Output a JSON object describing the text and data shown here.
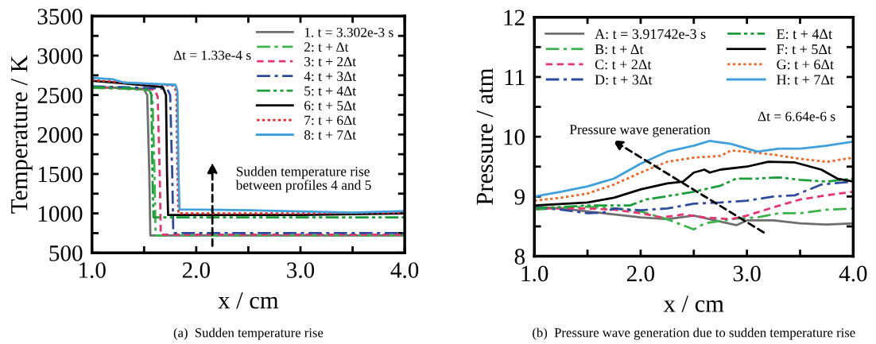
{
  "chart_data": [
    {
      "type": "line",
      "xlabel": "x / cm",
      "ylabel": "Temperature / K",
      "xlim": [
        1.0,
        4.0
      ],
      "ylim": [
        500,
        3500
      ],
      "xticks": [
        {
          "value": 1.0,
          "label": "1.0"
        },
        {
          "value": 1.5,
          "label": null
        },
        {
          "value": 2.0,
          "label": "2.0"
        },
        {
          "value": 2.5,
          "label": null
        },
        {
          "value": 3.0,
          "label": "3.0"
        },
        {
          "value": 3.5,
          "label": null
        },
        {
          "value": 4.0,
          "label": "4.0"
        }
      ],
      "yticks": [
        500,
        {
          "value": 750,
          "label": null
        },
        1000,
        {
          "value": 1250,
          "label": null
        },
        1500,
        {
          "value": 1750,
          "label": null
        },
        2000,
        {
          "value": 2250,
          "label": null
        },
        2500,
        {
          "value": 2750,
          "label": null
        },
        3000,
        {
          "value": 3250,
          "label": null
        },
        3500
      ],
      "grid": false,
      "legend": "top right",
      "annotations": [
        "Δt = 1.33e-4 s",
        "Sudden temperature rise\nbetween profiles 4 and 5",
        "(a)  Sudden temperature rise"
      ],
      "series": [
        {
          "name": "1. t = 3.302e-3 s",
          "color": "#6e6e6e",
          "line_style": "solid",
          "x": [
            1.0,
            1.3,
            1.5,
            1.53,
            1.55,
            1.56,
            4.0
          ],
          "values": [
            2600,
            2590,
            2570,
            2500,
            1500,
            720,
            720
          ]
        },
        {
          "name": "2: t + Δt",
          "color": "#3cb44b",
          "line_style": "dashdot",
          "x": [
            1.0,
            1.3,
            1.55,
            1.58,
            1.6,
            1.61,
            4.0
          ],
          "values": [
            2590,
            2580,
            2560,
            2480,
            1500,
            720,
            720
          ]
        },
        {
          "name": "3: t + 2Δt",
          "color": "#e8336e",
          "line_style": "dashed",
          "x": [
            1.0,
            1.3,
            1.6,
            1.63,
            1.65,
            1.66,
            4.0
          ],
          "values": [
            2600,
            2590,
            2570,
            2480,
            1500,
            730,
            730
          ]
        },
        {
          "name": "4: t + 3Δt",
          "color": "#2e4a9e",
          "line_style": "dashdot",
          "x": [
            1.0,
            1.3,
            1.72,
            1.75,
            1.77,
            1.78,
            4.0
          ],
          "values": [
            2610,
            2600,
            2580,
            2500,
            1500,
            750,
            750
          ]
        },
        {
          "name": "5: t + 4Δt",
          "color": "#1a9e3a",
          "line_style": "dashdotdot",
          "x": [
            1.0,
            1.3,
            1.55,
            1.57,
            1.58,
            1.59,
            4.0
          ],
          "values": [
            2600,
            2590,
            2570,
            2500,
            1500,
            950,
            950
          ]
        },
        {
          "name": "6: t + 5Δt",
          "color": "#000000",
          "line_style": "solid",
          "x": [
            1.0,
            1.3,
            1.68,
            1.71,
            1.72,
            1.73,
            3.0,
            4.0
          ],
          "values": [
            2680,
            2650,
            2600,
            2500,
            1500,
            980,
            980,
            1000
          ]
        },
        {
          "name": "7: t + 6Δt",
          "color": "#ee2222",
          "line_style": "dotted",
          "x": [
            1.0,
            1.3,
            1.78,
            1.81,
            1.82,
            1.83,
            3.0,
            4.0
          ],
          "values": [
            2690,
            2660,
            2620,
            2550,
            1500,
            1000,
            1000,
            1010
          ]
        },
        {
          "name": "8: t + 7Δt",
          "color": "#3fa0dc",
          "line_style": "solid",
          "x": [
            1.0,
            1.2,
            1.3,
            1.8,
            1.82,
            1.83,
            1.84,
            2.5,
            3.5,
            4.0
          ],
          "values": [
            2720,
            2700,
            2660,
            2630,
            2550,
            1500,
            1050,
            1040,
            1010,
            1030
          ]
        }
      ]
    },
    {
      "type": "line",
      "xlabel": "x / cm",
      "ylabel": "Pressure / atm",
      "xlim": [
        1.0,
        4.0
      ],
      "ylim": [
        8,
        12
      ],
      "xticks": [
        {
          "value": 1.0,
          "label": "1.0"
        },
        {
          "value": 1.5,
          "label": null
        },
        {
          "value": 2.0,
          "label": "2.0"
        },
        {
          "value": 2.5,
          "label": null
        },
        {
          "value": 3.0,
          "label": "3.0"
        },
        {
          "value": 3.5,
          "label": null
        },
        {
          "value": 4.0,
          "label": "4.0"
        }
      ],
      "yticks": [
        8,
        {
          "value": 8.5,
          "label": null
        },
        9,
        {
          "value": 9.5,
          "label": null
        },
        10,
        {
          "value": 10.5,
          "label": null
        },
        11,
        {
          "value": 11.5,
          "label": null
        },
        12
      ],
      "grid": false,
      "legend": "top left",
      "annotations": [
        "Δt = 6.64e-6 s",
        "Pressure wave generation",
        "(b)  Pressure wave generation due to sudden temperature rise"
      ],
      "series": [
        {
          "name": "A: t = 3.91742e-3 s",
          "color": "#6e6e6e",
          "line_style": "solid",
          "x": [
            1.0,
            1.25,
            1.5,
            1.75,
            2.0,
            2.25,
            2.5,
            2.75,
            2.9,
            3.0,
            3.25,
            3.5,
            3.75,
            4.0
          ],
          "values": [
            8.83,
            8.8,
            8.75,
            8.7,
            8.65,
            8.62,
            8.68,
            8.58,
            8.52,
            8.6,
            8.6,
            8.55,
            8.53,
            8.55
          ]
        },
        {
          "name": "B: t + Δt",
          "color": "#3cb44b",
          "line_style": "dashdot",
          "x": [
            1.0,
            1.5,
            1.75,
            2.0,
            2.25,
            2.5,
            2.6,
            2.9,
            3.1,
            3.3,
            3.5,
            3.75,
            4.0
          ],
          "values": [
            8.78,
            8.83,
            8.8,
            8.75,
            8.62,
            8.45,
            8.55,
            8.63,
            8.65,
            8.72,
            8.72,
            8.78,
            8.8
          ]
        },
        {
          "name": "C: t + 2Δt",
          "color": "#e8336e",
          "line_style": "dashed",
          "x": [
            1.0,
            1.5,
            1.75,
            2.0,
            2.2,
            2.4,
            2.6,
            2.85,
            3.0,
            3.25,
            3.5,
            3.75,
            4.0
          ],
          "values": [
            8.8,
            8.8,
            8.78,
            8.72,
            8.65,
            8.7,
            8.65,
            8.62,
            8.68,
            8.82,
            8.95,
            9.02,
            9.08
          ]
        },
        {
          "name": "D: t + 3Δt",
          "color": "#2e4a9e",
          "line_style": "dashdot",
          "x": [
            1.0,
            1.25,
            1.5,
            1.65,
            1.75,
            2.0,
            2.25,
            2.5,
            2.75,
            3.0,
            3.25,
            3.45,
            3.7,
            4.0
          ],
          "values": [
            8.82,
            8.78,
            8.72,
            8.73,
            8.8,
            8.77,
            8.8,
            8.88,
            8.9,
            8.93,
            9.0,
            9.02,
            9.2,
            9.25
          ]
        },
        {
          "name": "E: t + 4Δt",
          "color": "#1a9e3a",
          "line_style": "dashdotdot",
          "x": [
            1.0,
            1.5,
            1.9,
            2.05,
            2.3,
            2.5,
            2.75,
            2.9,
            3.1,
            3.3,
            3.5,
            3.75,
            4.0
          ],
          "values": [
            8.8,
            8.85,
            8.85,
            8.95,
            9.02,
            9.08,
            9.18,
            9.3,
            9.3,
            9.32,
            9.28,
            9.25,
            9.3
          ]
        },
        {
          "name": "F: t + 5Δt",
          "color": "#000000",
          "line_style": "solid",
          "x": [
            1.0,
            1.5,
            1.75,
            2.0,
            2.25,
            2.4,
            2.5,
            2.6,
            2.65,
            2.75,
            3.0,
            3.2,
            3.45,
            3.7,
            3.85,
            4.0
          ],
          "values": [
            8.85,
            8.9,
            8.98,
            9.12,
            9.22,
            9.25,
            9.4,
            9.45,
            9.4,
            9.45,
            9.5,
            9.58,
            9.57,
            9.45,
            9.3,
            9.25
          ]
        },
        {
          "name": "G: t + 6Δt",
          "color": "#f26522",
          "line_style": "dotted",
          "x": [
            1.0,
            1.25,
            1.5,
            1.75,
            2.0,
            2.25,
            2.5,
            2.75,
            2.85,
            3.0,
            3.25,
            3.5,
            3.75,
            4.0
          ],
          "values": [
            8.93,
            8.98,
            9.05,
            9.2,
            9.4,
            9.58,
            9.65,
            9.68,
            9.77,
            9.75,
            9.7,
            9.63,
            9.58,
            9.65
          ]
        },
        {
          "name": "H: t + 7Δt",
          "color": "#3fa0dc",
          "line_style": "solid",
          "x": [
            1.0,
            1.25,
            1.5,
            1.75,
            2.0,
            2.25,
            2.5,
            2.65,
            2.85,
            3.1,
            3.3,
            3.5,
            3.75,
            4.0
          ],
          "values": [
            9.0,
            9.08,
            9.17,
            9.3,
            9.55,
            9.75,
            9.85,
            9.93,
            9.88,
            9.75,
            9.8,
            9.8,
            9.85,
            9.92
          ]
        }
      ]
    }
  ]
}
